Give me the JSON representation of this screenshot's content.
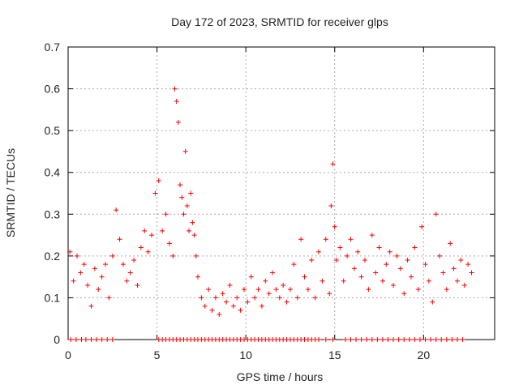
{
  "chart_data": {
    "type": "scatter",
    "title": "Day 172 of 2023, SRMTID for receiver glps",
    "xlabel": "GPS time / hours",
    "ylabel": "SRMTID / TECUs",
    "xlim": [
      0,
      24
    ],
    "ylim": [
      0,
      0.7
    ],
    "xticks": [
      0,
      5,
      10,
      15,
      20
    ],
    "yticks": [
      0,
      0.1,
      0.2,
      0.3,
      0.4,
      0.5,
      0.6,
      0.7
    ],
    "xtick_labels": [
      "0",
      "5",
      "10",
      "15",
      "20"
    ],
    "ytick_labels": [
      "0",
      "0.1",
      "0.2",
      "0.3",
      "0.4",
      "0.5",
      "0.6",
      "0.7"
    ],
    "grid": true,
    "marker": "+",
    "color": "#ff0000",
    "series": [
      {
        "name": "SRMTID",
        "x": [
          0.1,
          0.3,
          0.5,
          0.7,
          0.9,
          1.1,
          1.3,
          1.5,
          1.7,
          1.9,
          2.1,
          2.3,
          2.5,
          2.7,
          2.9,
          3.1,
          3.3,
          3.5,
          3.7,
          3.9,
          4.1,
          4.3,
          4.5,
          4.7,
          4.9,
          5.1,
          5.3,
          5.5,
          5.7,
          5.9,
          6.0,
          6.1,
          6.2,
          6.3,
          6.4,
          6.5,
          6.6,
          6.7,
          6.8,
          6.9,
          7.0,
          7.1,
          7.2,
          7.3,
          7.5,
          7.7,
          7.9,
          8.1,
          8.3,
          8.5,
          8.7,
          8.9,
          9.1,
          9.3,
          9.5,
          9.7,
          9.9,
          10.1,
          10.3,
          10.5,
          10.7,
          10.9,
          11.1,
          11.3,
          11.5,
          11.7,
          11.9,
          12.1,
          12.3,
          12.5,
          12.7,
          12.9,
          13.1,
          13.3,
          13.5,
          13.7,
          13.9,
          14.1,
          14.3,
          14.5,
          14.7,
          14.8,
          14.9,
          15.0,
          15.1,
          15.3,
          15.5,
          15.7,
          15.9,
          16.1,
          16.3,
          16.5,
          16.7,
          16.9,
          17.1,
          17.3,
          17.5,
          17.7,
          17.9,
          18.1,
          18.3,
          18.5,
          18.7,
          18.9,
          19.1,
          19.3,
          19.5,
          19.7,
          19.9,
          20.1,
          20.3,
          20.5,
          20.7,
          20.9,
          21.1,
          21.3,
          21.5,
          21.7,
          21.9,
          22.1,
          22.3,
          22.5,
          22.7
        ],
        "y": [
          0.21,
          0.14,
          0.2,
          0.16,
          0.18,
          0.13,
          0.08,
          0.17,
          0.12,
          0.15,
          0.18,
          0.1,
          0.2,
          0.31,
          0.24,
          0.18,
          0.14,
          0.16,
          0.19,
          0.13,
          0.22,
          0.26,
          0.21,
          0.25,
          0.35,
          0.38,
          0.26,
          0.3,
          0.23,
          0.2,
          0.6,
          0.57,
          0.52,
          0.37,
          0.34,
          0.3,
          0.45,
          0.32,
          0.26,
          0.35,
          0.28,
          0.25,
          0.2,
          0.15,
          0.1,
          0.08,
          0.12,
          0.07,
          0.1,
          0.06,
          0.11,
          0.09,
          0.13,
          0.08,
          0.1,
          0.07,
          0.12,
          0.09,
          0.15,
          0.1,
          0.12,
          0.08,
          0.14,
          0.11,
          0.16,
          0.12,
          0.1,
          0.13,
          0.09,
          0.12,
          0.18,
          0.1,
          0.24,
          0.15,
          0.12,
          0.19,
          0.1,
          0.21,
          0.14,
          0.24,
          0.11,
          0.32,
          0.42,
          0.27,
          0.19,
          0.22,
          0.14,
          0.2,
          0.24,
          0.17,
          0.21,
          0.15,
          0.19,
          0.12,
          0.25,
          0.16,
          0.22,
          0.14,
          0.18,
          0.21,
          0.13,
          0.2,
          0.17,
          0.11,
          0.19,
          0.15,
          0.22,
          0.12,
          0.27,
          0.18,
          0.14,
          0.09,
          0.3,
          0.2,
          0.16,
          0.12,
          0.23,
          0.17,
          0.14,
          0.19,
          0.13,
          0.18,
          0.16
        ]
      }
    ],
    "zero_marks_x": [
      0.15,
      0.45,
      0.75,
      1.0,
      1.3,
      1.6,
      1.9,
      2.2,
      2.5,
      5.1,
      5.3,
      5.5,
      5.7,
      5.9,
      6.1,
      6.3,
      6.5,
      6.7,
      6.9,
      7.1,
      7.3,
      7.5,
      7.7,
      7.9,
      8.1,
      8.3,
      8.5,
      8.7,
      8.9,
      9.1,
      9.3,
      9.5,
      9.7,
      9.9,
      10.1,
      10.3,
      10.5,
      10.7,
      10.9,
      11.1,
      11.3,
      11.5,
      11.7,
      11.9,
      12.1,
      12.3,
      12.5,
      12.7,
      12.9,
      13.1,
      13.3,
      13.5,
      13.7,
      13.9,
      14.1,
      14.5,
      14.9,
      15.6,
      15.9,
      16.2,
      16.5,
      16.8,
      17.1,
      17.4,
      17.7,
      18.0,
      18.3,
      18.6,
      18.9,
      19.2,
      19.5,
      19.8,
      20.1,
      20.4,
      20.7,
      21.0,
      21.3,
      21.6,
      21.9,
      22.2
    ]
  }
}
